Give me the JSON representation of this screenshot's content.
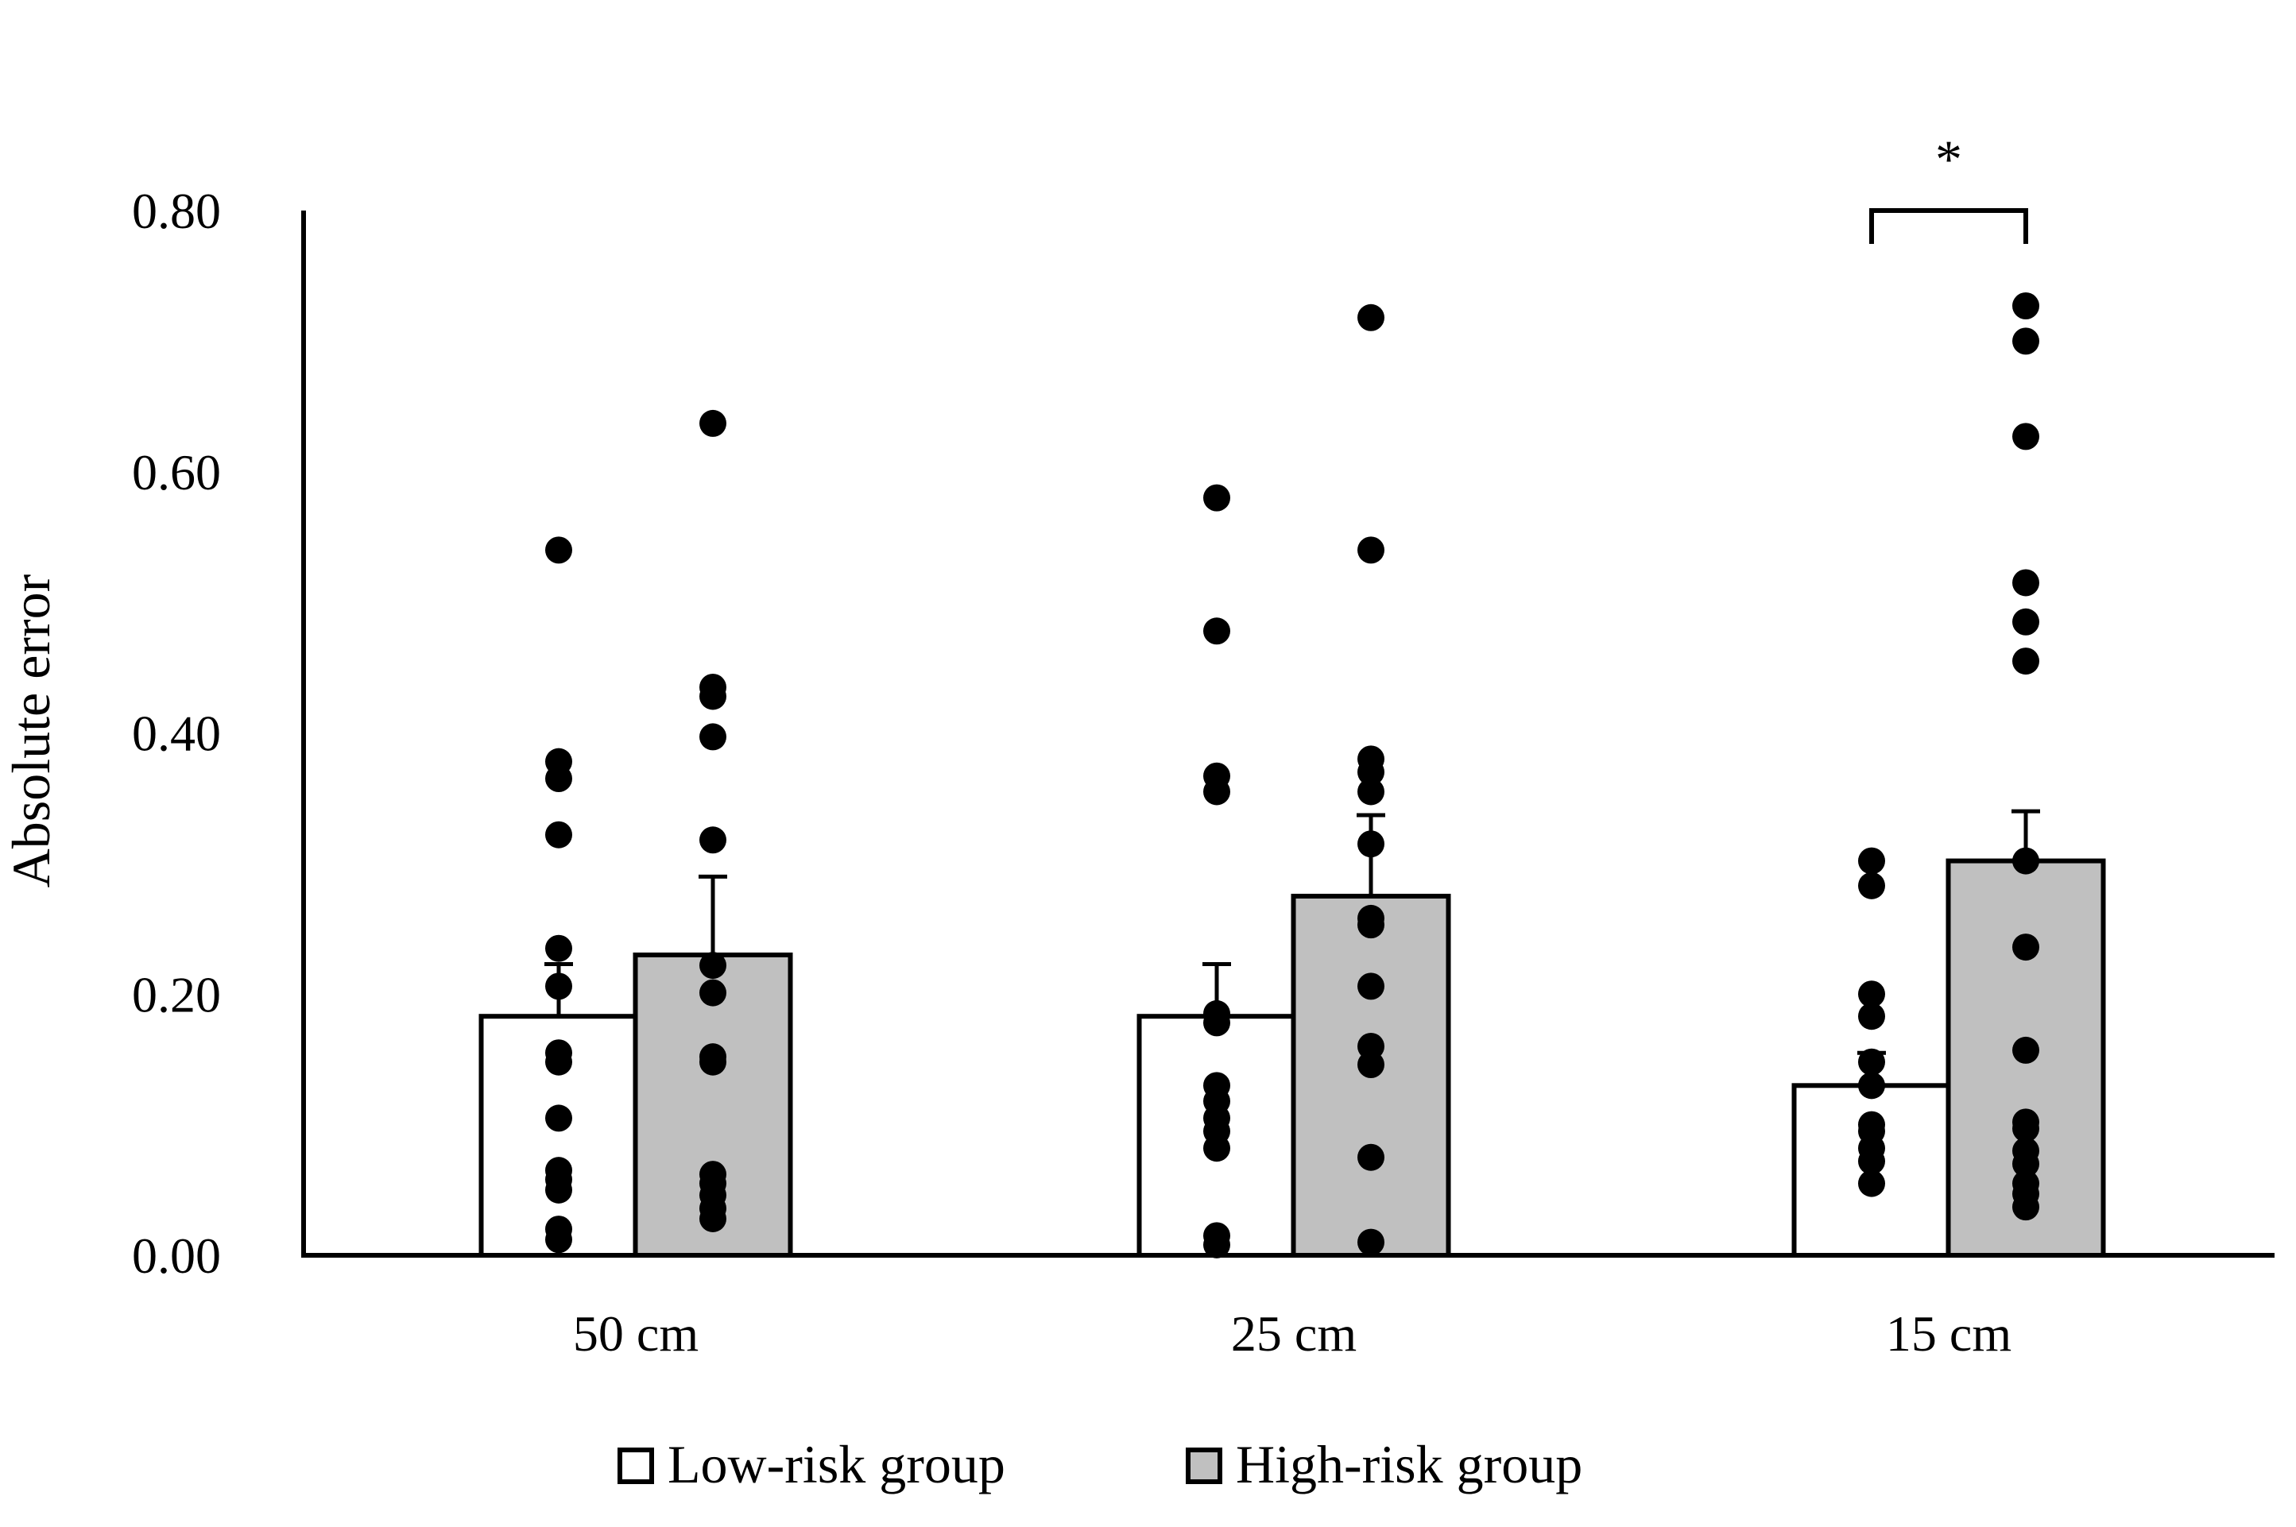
{
  "chart_data": {
    "type": "bar",
    "title": "",
    "xlabel": "",
    "ylabel": "Absolute error",
    "ylim": [
      0,
      0.8
    ],
    "yticks": [
      "0.00",
      "0.20",
      "0.40",
      "0.60",
      "0.80"
    ],
    "categories": [
      "50 cm",
      "25 cm",
      "15 cm"
    ],
    "legend_position": "bottom",
    "series": [
      {
        "name": "Low-risk group",
        "color": "#ffffff",
        "values": [
          0.183,
          0.183,
          0.13
        ],
        "errors": [
          0.04,
          0.04,
          0.025
        ],
        "points": [
          [
            0.54,
            0.378,
            0.365,
            0.322,
            0.235,
            0.206,
            0.155,
            0.148,
            0.105,
            0.065,
            0.058,
            0.05,
            0.02,
            0.012
          ],
          [
            0.58,
            0.478,
            0.367,
            0.355,
            0.185,
            0.178,
            0.13,
            0.118,
            0.105,
            0.095,
            0.082,
            0.015,
            0.008
          ],
          [
            0.302,
            0.283,
            0.2,
            0.183,
            0.148,
            0.13,
            0.1,
            0.095,
            0.082,
            0.072,
            0.055
          ]
        ]
      },
      {
        "name": "High-risk group",
        "color": "#c0c0c0",
        "values": [
          0.23,
          0.275,
          0.302
        ],
        "errors": [
          0.06,
          0.062,
          0.038
        ],
        "points": [
          [
            0.637,
            0.435,
            0.428,
            0.397,
            0.318,
            0.222,
            0.201,
            0.152,
            0.148,
            0.062,
            0.055,
            0.046,
            0.036,
            0.028
          ],
          [
            0.718,
            0.54,
            0.38,
            0.37,
            0.355,
            0.315,
            0.258,
            0.253,
            0.206,
            0.16,
            0.146,
            0.075,
            0.01
          ],
          [
            0.727,
            0.7,
            0.627,
            0.515,
            0.485,
            0.455,
            0.302,
            0.236,
            0.157,
            0.102,
            0.097,
            0.08,
            0.07,
            0.055,
            0.047,
            0.037
          ]
        ]
      }
    ],
    "annotations": [
      {
        "text": "*",
        "category": "15 cm"
      }
    ]
  }
}
